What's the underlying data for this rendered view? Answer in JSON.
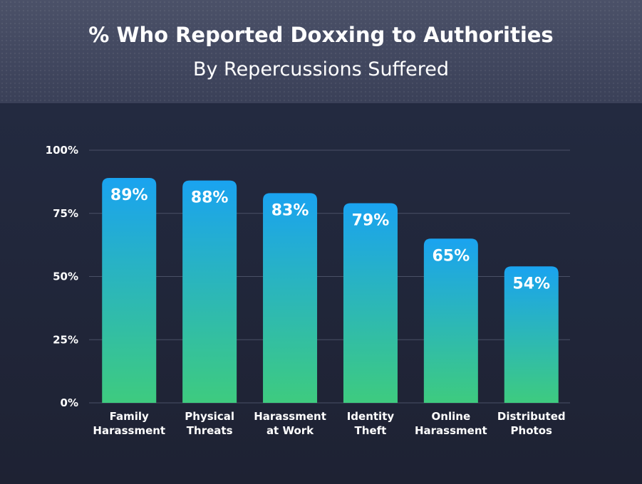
{
  "header": {
    "title": "% Who Reported Doxxing to Authorities",
    "subtitle": "By Repercussions Suffered"
  },
  "colors": {
    "header_bg": "#444a61",
    "chart_bg": "#1f2436",
    "bar_top": "#1aa3f0",
    "bar_bottom": "#3ecb7f",
    "grid": "#4a5066",
    "text": "#ffffff"
  },
  "chart_data": {
    "type": "bar",
    "title": "% Who Reported Doxxing to Authorities",
    "subtitle": "By Repercussions Suffered",
    "categories": [
      [
        "Family",
        "Harassment"
      ],
      [
        "Physical",
        "Threats"
      ],
      [
        "Harassment",
        "at Work"
      ],
      [
        "Identity",
        "Theft"
      ],
      [
        "Online",
        "Harassment"
      ],
      [
        "Distributed",
        "Photos"
      ]
    ],
    "values": [
      89,
      88,
      83,
      79,
      65,
      54
    ],
    "data_labels": [
      "89%",
      "88%",
      "83%",
      "79%",
      "65%",
      "54%"
    ],
    "ylim": [
      0,
      100
    ],
    "yticks": [
      0,
      25,
      50,
      75,
      100
    ],
    "ytick_labels": [
      "0%",
      "25%",
      "50%",
      "75%",
      "100%"
    ],
    "grid": true,
    "legend": "none"
  }
}
